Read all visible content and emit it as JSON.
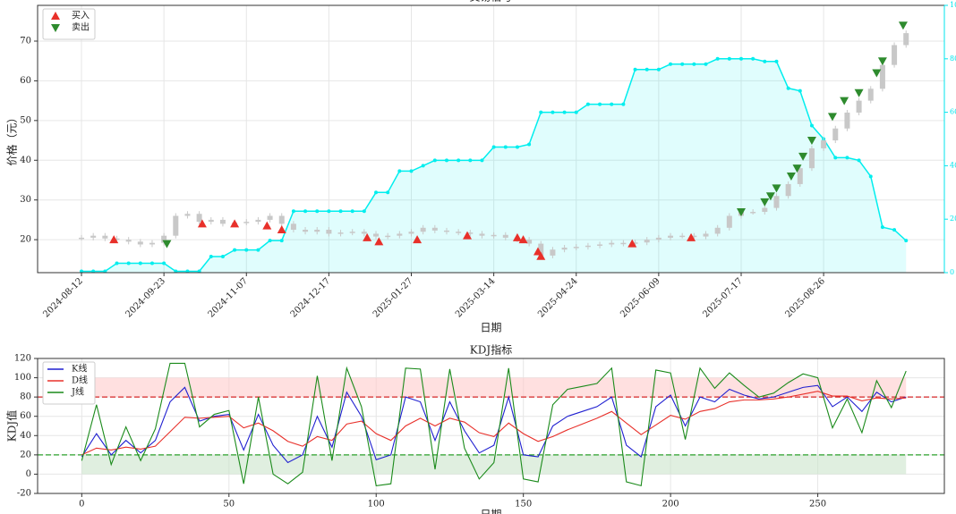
{
  "chart_data": [
    {
      "type": "candlestick",
      "title": "交易信号",
      "xlabel": "日期",
      "ylabel": "价格（元）",
      "x": [
        0,
        4,
        8,
        12,
        16,
        20,
        24,
        28,
        32,
        36,
        40,
        44,
        48,
        52,
        56,
        60,
        64,
        68,
        72,
        76,
        80,
        84,
        88,
        92,
        96,
        100,
        104,
        108,
        112,
        116,
        120,
        124,
        128,
        132,
        136,
        140,
        144,
        148,
        152,
        156,
        160,
        164,
        168,
        172,
        176,
        180,
        184,
        188,
        192,
        196,
        200,
        204,
        208,
        212,
        216,
        220,
        224,
        228,
        232,
        236,
        240,
        244,
        248,
        252,
        256,
        260,
        264,
        268,
        272,
        276,
        280
      ],
      "values": [
        20.5,
        21,
        20.3,
        20,
        19.5,
        18.8,
        19.2,
        21,
        26,
        26.5,
        24.5,
        25,
        24,
        24.3,
        24.5,
        25,
        26,
        24,
        22.5,
        22,
        22.5,
        21.5,
        21.8,
        22,
        21.5,
        20.8,
        21,
        21.5,
        22,
        23,
        22.3,
        22,
        21.8,
        21.5,
        21,
        21.2,
        20.5,
        20,
        19,
        16,
        17.5,
        18,
        18.2,
        18.5,
        18.8,
        19.2,
        19,
        19.3,
        20,
        20.5,
        21,
        21,
        20.8,
        21.5,
        23,
        26,
        27,
        27,
        28,
        31,
        34,
        38,
        43,
        45,
        48,
        52,
        55,
        58,
        64,
        69,
        72
      ],
      "color": "#c8c8c8",
      "series": [
        {
          "axis": "y2",
          "color": "#00eeee",
          "values": [
            0.5,
            0.5,
            0.5,
            3.5,
            3.5,
            3.5,
            3.5,
            3.5,
            0.5,
            0.5,
            0.5,
            6,
            6,
            8.5,
            8.5,
            8.5,
            12,
            12,
            23,
            23,
            23,
            23,
            23,
            23,
            23,
            30,
            30,
            38,
            38,
            40,
            42,
            42,
            42,
            42,
            42,
            47,
            47,
            47,
            48,
            60,
            60,
            60,
            60,
            63,
            63,
            63,
            63,
            76,
            76,
            76,
            78,
            78,
            78,
            78,
            80,
            80,
            80,
            80,
            79,
            79,
            69,
            68,
            55,
            50,
            43,
            43,
            42,
            36,
            17,
            16,
            12
          ]
        }
      ],
      "buy": {
        "name": "买入",
        "color": "#e8302a",
        "x": [
          11,
          41,
          52,
          63,
          68,
          97,
          101,
          114,
          131,
          148,
          150,
          155,
          156,
          187,
          207
        ],
        "values": [
          20,
          24,
          24,
          23.5,
          22.5,
          20.5,
          19.5,
          20,
          21,
          20.5,
          20,
          17,
          15.8,
          19,
          20.5
        ]
      },
      "sell": {
        "name": "卖出",
        "color": "#2e8b2e",
        "x": [
          29,
          224,
          232,
          234,
          236,
          241,
          243,
          245,
          248,
          255,
          259,
          264,
          270,
          272,
          279
        ],
        "values": [
          19,
          27,
          29.5,
          31,
          33,
          36,
          38,
          41,
          45,
          51,
          55,
          57,
          62,
          65,
          74
        ]
      },
      "xlim": [
        -14.9,
        293
      ],
      "ylim": [
        11.7,
        79
      ],
      "y2lim": [
        0,
        100
      ],
      "y2color": "#00e5ee",
      "xticks": [
        {
          "value": 0,
          "label": "2024-08-12"
        },
        {
          "value": 28,
          "label": "2024-09-23"
        },
        {
          "value": 56,
          "label": "2024-11-07"
        },
        {
          "value": 84,
          "label": "2024-12-17"
        },
        {
          "value": 112,
          "label": "2025-01-27"
        },
        {
          "value": 140,
          "label": "2025-03-14"
        },
        {
          "value": 168,
          "label": "2025-04-24"
        },
        {
          "value": 196,
          "label": "2025-06-09"
        },
        {
          "value": 224,
          "label": "2025-07-17"
        },
        {
          "value": 252,
          "label": "2025-08-26"
        }
      ],
      "yticks": [
        20,
        30,
        40,
        50,
        60,
        70
      ],
      "y2ticks": [
        0,
        20,
        40,
        60,
        80,
        100
      ],
      "grid": true,
      "legend": "upper left"
    },
    {
      "type": "line",
      "title": "KDJ指标",
      "xlabel": "日期",
      "ylabel": "KDJ值",
      "x": [
        0,
        5,
        10,
        15,
        20,
        25,
        30,
        35,
        40,
        45,
        50,
        55,
        60,
        65,
        70,
        75,
        80,
        85,
        90,
        95,
        100,
        105,
        110,
        115,
        120,
        125,
        130,
        135,
        140,
        145,
        150,
        155,
        160,
        165,
        170,
        175,
        180,
        185,
        190,
        195,
        200,
        205,
        210,
        215,
        220,
        225,
        230,
        235,
        240,
        245,
        250,
        255,
        260,
        265,
        270,
        275,
        280
      ],
      "series": [
        {
          "name": "K线",
          "color": "#1f1fd0",
          "values": [
            18,
            42,
            20,
            35,
            22,
            35,
            75,
            90,
            55,
            60,
            62,
            25,
            62,
            30,
            12,
            20,
            60,
            28,
            85,
            60,
            15,
            20,
            80,
            75,
            35,
            75,
            45,
            22,
            30,
            80,
            20,
            18,
            50,
            60,
            65,
            70,
            80,
            30,
            18,
            70,
            82,
            50,
            80,
            75,
            88,
            82,
            78,
            80,
            85,
            90,
            92,
            70,
            80,
            65,
            85,
            75,
            80
          ]
        },
        {
          "name": "D线",
          "color": "#e8302a",
          "values": [
            20,
            27,
            25,
            28,
            26,
            29,
            44,
            59,
            58,
            59,
            60,
            48,
            53,
            45,
            34,
            29,
            39,
            35,
            52,
            55,
            42,
            35,
            50,
            58,
            50,
            58,
            54,
            43,
            39,
            53,
            42,
            34,
            39,
            46,
            52,
            58,
            65,
            53,
            41,
            51,
            61,
            57,
            65,
            68,
            75,
            77,
            77,
            78,
            80,
            83,
            86,
            81,
            81,
            76,
            79,
            78,
            79
          ]
        },
        {
          "name": "J线",
          "color": "#1a8a1a",
          "values": [
            14,
            72,
            10,
            49,
            14,
            47,
            115,
            115,
            49,
            62,
            66,
            -10,
            80,
            0,
            -10,
            2,
            102,
            14,
            110,
            70,
            -12,
            -10,
            110,
            109,
            5,
            109,
            27,
            -5,
            12,
            110,
            -5,
            -8,
            72,
            88,
            91,
            94,
            110,
            -8,
            -12,
            108,
            105,
            36,
            110,
            89,
            105,
            92,
            80,
            84,
            95,
            104,
            100,
            48,
            78,
            43,
            97,
            69,
            107
          ]
        }
      ],
      "bands": [
        {
          "range": [
            80,
            100
          ],
          "color": "#ffcccc"
        },
        {
          "range": [
            0,
            20
          ],
          "color": "#cce5cc"
        }
      ],
      "hlines": [
        {
          "value": 80,
          "color": "#d62728"
        },
        {
          "value": 20,
          "color": "#2ca02c"
        }
      ],
      "xlim": [
        -15,
        293
      ],
      "ylim": [
        -20,
        120
      ],
      "xticks": [
        0,
        50,
        100,
        150,
        200,
        250
      ],
      "yticks": [
        -20,
        0,
        20,
        40,
        60,
        80,
        100,
        120
      ],
      "grid": true,
      "legend": "upper left"
    }
  ]
}
